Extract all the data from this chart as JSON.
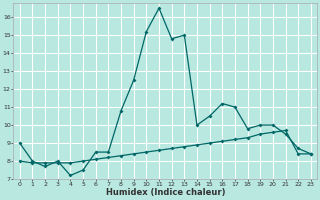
{
  "title": "",
  "xlabel": "Humidex (Indice chaleur)",
  "bg_color": "#b8e8e0",
  "grid_color": "#ffffff",
  "line_color": "#006666",
  "xlim": [
    -0.5,
    23.5
  ],
  "ylim": [
    7,
    16.8
  ],
  "yticks": [
    7,
    8,
    9,
    10,
    11,
    12,
    13,
    14,
    15,
    16
  ],
  "xticks": [
    0,
    1,
    2,
    3,
    4,
    5,
    6,
    7,
    8,
    9,
    10,
    11,
    12,
    13,
    14,
    15,
    16,
    17,
    18,
    19,
    20,
    21,
    22,
    23
  ],
  "series1_x": [
    0,
    1,
    2,
    3,
    4,
    5,
    6,
    7,
    8,
    9,
    10,
    11,
    12,
    13,
    14,
    15,
    16,
    17,
    18,
    19,
    20,
    21,
    22,
    23
  ],
  "series1_y": [
    9.0,
    8.0,
    7.7,
    8.0,
    7.2,
    7.5,
    8.5,
    8.5,
    10.8,
    12.5,
    15.2,
    16.5,
    14.8,
    15.0,
    10.0,
    10.5,
    11.2,
    11.0,
    9.8,
    10.0,
    10.0,
    9.5,
    8.7,
    8.4
  ],
  "series2_x": [
    0,
    1,
    2,
    3,
    4,
    5,
    6,
    7,
    8,
    9,
    10,
    11,
    12,
    13,
    14,
    15,
    16,
    17,
    18,
    19,
    20,
    21,
    22,
    23
  ],
  "series2_y": [
    8.0,
    7.9,
    7.9,
    7.9,
    7.9,
    8.0,
    8.1,
    8.2,
    8.3,
    8.4,
    8.5,
    8.6,
    8.7,
    8.8,
    8.9,
    9.0,
    9.1,
    9.2,
    9.3,
    9.5,
    9.6,
    9.7,
    8.4,
    8.4
  ]
}
